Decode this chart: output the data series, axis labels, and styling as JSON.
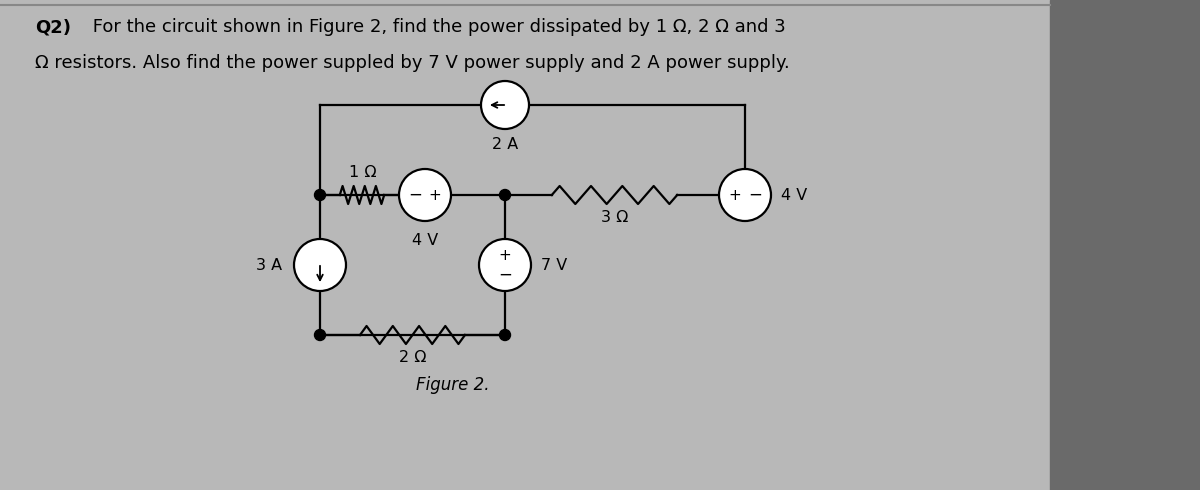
{
  "title_bold": "Q2)",
  "title_line1": " For the circuit shown in Figure 2, find the power dissipated by 1 Ω, 2 Ω and 3",
  "title_line2": "Ω resistors. Also find the power suppled by 7 V power supply and 2 A power supply.",
  "figure_label": "Figure 2.",
  "bg_color": "#b8b8b8",
  "paper_color": "#d8d8d8",
  "text_color": "#000000",
  "title_fontsize": 13,
  "label_fontsize": 11.5,
  "lw": 1.6,
  "xL": 3.2,
  "xM": 5.05,
  "xR": 7.45,
  "yT": 2.95,
  "yB": 1.55,
  "yTT": 3.85,
  "cs2a_r": 0.24,
  "vs4v_r": 0.26,
  "vs7v_r": 0.26,
  "cs3a_r": 0.26,
  "dot_r": 0.055
}
